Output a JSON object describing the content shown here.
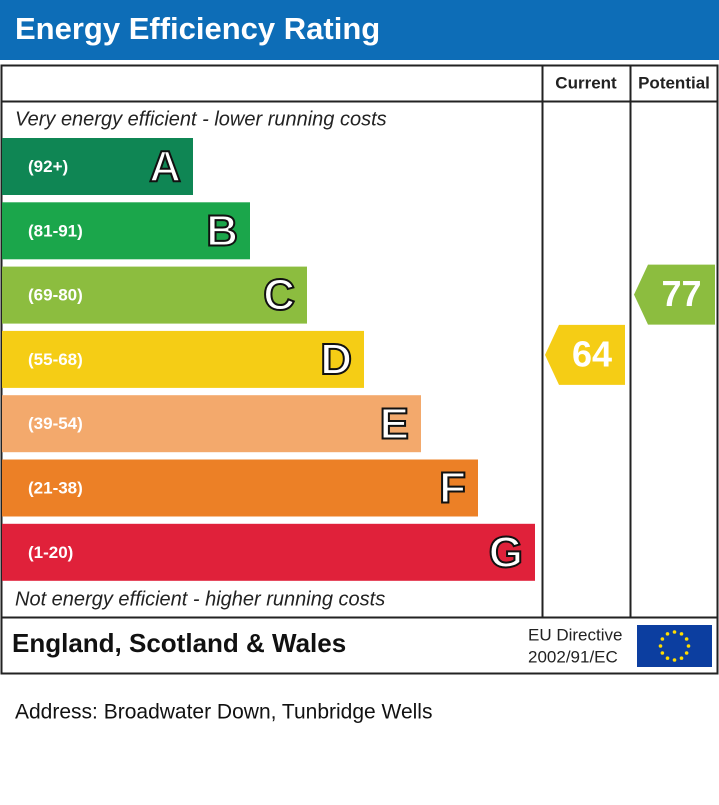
{
  "header": {
    "title": "Energy Efficiency Rating"
  },
  "columns": {
    "current": "Current",
    "potential": "Potential"
  },
  "top_note": "Very energy efficient - lower running costs",
  "bottom_note": "Not energy efficient - higher running costs",
  "bands": [
    {
      "range": "(92+)",
      "letter": "A",
      "color": "#0f8654"
    },
    {
      "range": "(81-91)",
      "letter": "B",
      "color": "#1ba64b"
    },
    {
      "range": "(69-80)",
      "letter": "C",
      "color": "#8cbd3f"
    },
    {
      "range": "(55-68)",
      "letter": "D",
      "color": "#f5cd15"
    },
    {
      "range": "(39-54)",
      "letter": "E",
      "color": "#f3a96c"
    },
    {
      "range": "(21-38)",
      "letter": "F",
      "color": "#ec8026"
    },
    {
      "range": "(1-20)",
      "letter": "G",
      "color": "#e0213a"
    }
  ],
  "current": {
    "value": 64,
    "color": "#f5cd15"
  },
  "potential": {
    "value": 77,
    "color": "#8cbd3f"
  },
  "footer": {
    "region": "England, Scotland & Wales",
    "directive_line1": "EU Directive",
    "directive_line2": "2002/91/EC"
  },
  "address": "Address: Broadwater Down, Tunbridge Wells"
}
